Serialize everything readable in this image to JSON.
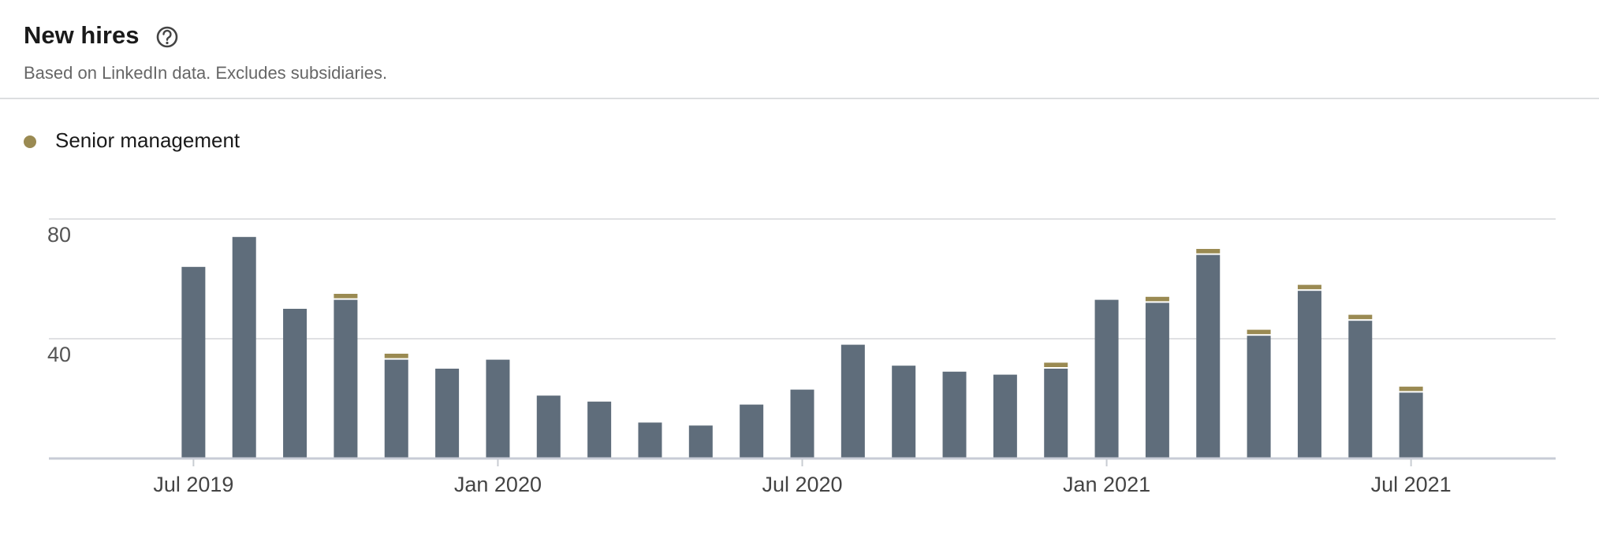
{
  "chart_data": {
    "type": "stacked-bar",
    "title": "New hires",
    "subtitle": "Based on LinkedIn data. Excludes subsidiaries.",
    "categories": [
      "Jul 2019",
      null,
      null,
      null,
      null,
      null,
      "Jan 2020",
      null,
      null,
      null,
      null,
      null,
      "Jul 2020",
      null,
      null,
      null,
      null,
      null,
      "Jan 2021",
      null,
      null,
      null,
      null,
      null,
      "Jul 2021"
    ],
    "series": [
      {
        "color": "#5f6d7b",
        "values": [
          64,
          74,
          50,
          53,
          33,
          30,
          33,
          21,
          19,
          12,
          11,
          18,
          23,
          38,
          31,
          29,
          28,
          30,
          53,
          52,
          68,
          41,
          56,
          46,
          22
        ]
      },
      {
        "name": "Senior management",
        "color": "#9a8a52",
        "values": [
          0,
          0,
          0,
          2,
          2,
          0,
          0,
          0,
          0,
          0,
          0,
          0,
          0,
          0,
          0,
          0,
          0,
          2,
          0,
          2,
          2,
          2,
          2,
          2,
          2
        ]
      }
    ],
    "ylim": [
      0,
      80
    ],
    "yticks": [
      40,
      80
    ],
    "grid": true
  }
}
